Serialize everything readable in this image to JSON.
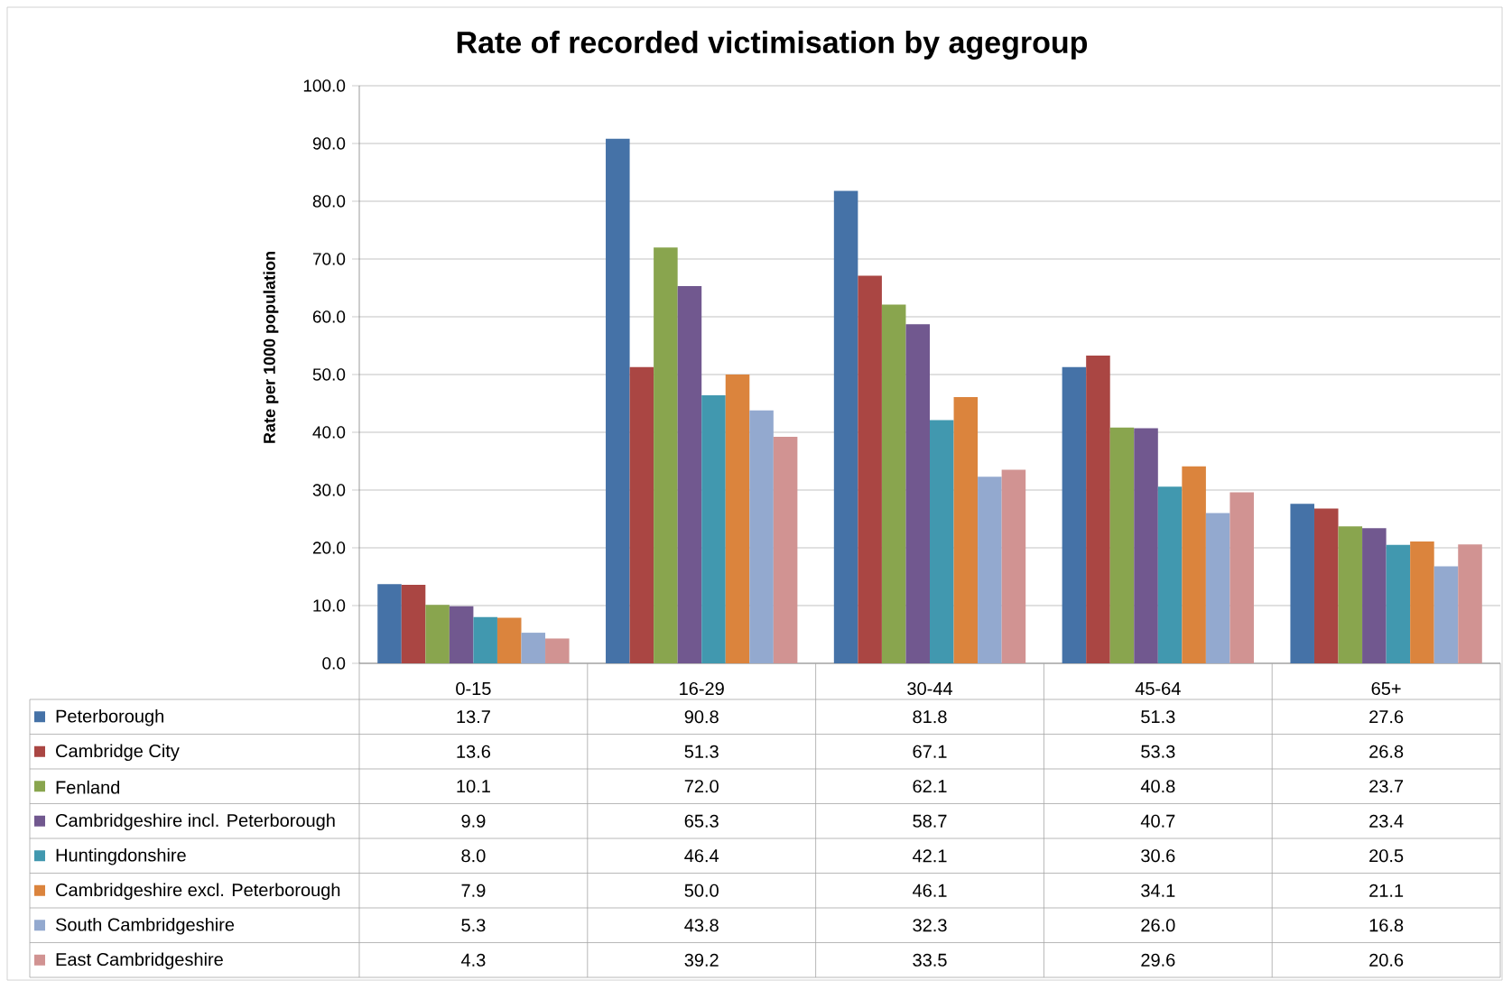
{
  "chart_data": {
    "type": "bar",
    "title": "Rate of recorded victimisation by agegroup",
    "ylabel": "Rate per 1000 population",
    "categories": [
      "0-15",
      "16-29",
      "30-44",
      "45-64",
      "65+"
    ],
    "series": [
      {
        "name": "Peterborough",
        "color": "#4572a7",
        "values": [
          13.7,
          90.8,
          81.8,
          51.3,
          27.6
        ],
        "value_labels": [
          "13.7",
          "90.8",
          "81.8",
          "51.3",
          "27.6"
        ]
      },
      {
        "name": "Cambridge City",
        "color": "#aa4643",
        "values": [
          13.6,
          51.3,
          67.1,
          53.3,
          26.8
        ],
        "value_labels": [
          "13.6",
          "51.3",
          "67.1",
          "53.3",
          "26.8"
        ]
      },
      {
        "name": "Fenland",
        "color": "#89a54e",
        "values": [
          10.1,
          72.0,
          62.1,
          40.8,
          23.7
        ],
        "value_labels": [
          "10.1",
          "72.0",
          "62.1",
          "40.8",
          "23.7"
        ]
      },
      {
        "name": "Cambridgeshire incl. Peterborough",
        "color": "#71588f",
        "values": [
          9.9,
          65.3,
          58.7,
          40.7,
          23.4
        ],
        "value_labels": [
          "9.9",
          "65.3",
          "58.7",
          "40.7",
          "23.4"
        ]
      },
      {
        "name": "Huntingdonshire",
        "color": "#4198af",
        "values": [
          8.0,
          46.4,
          42.1,
          30.6,
          20.5
        ],
        "value_labels": [
          "8.0",
          "46.4",
          "42.1",
          "30.6",
          "20.5"
        ]
      },
      {
        "name": "Cambridgeshire excl. Peterborough",
        "color": "#db843d",
        "values": [
          7.9,
          50.0,
          46.1,
          34.1,
          21.1
        ],
        "value_labels": [
          "7.9",
          "50.0",
          "46.1",
          "34.1",
          "21.1"
        ]
      },
      {
        "name": "South Cambridgeshire",
        "color": "#93a9cf",
        "values": [
          5.3,
          43.8,
          32.3,
          26.0,
          16.8
        ],
        "value_labels": [
          "5.3",
          "43.8",
          "32.3",
          "26.0",
          "16.8"
        ]
      },
      {
        "name": "East Cambridgeshire",
        "color": "#d19392",
        "values": [
          4.3,
          39.2,
          33.5,
          29.6,
          20.6
        ],
        "value_labels": [
          "4.3",
          "39.2",
          "33.5",
          "29.6",
          "20.6"
        ]
      }
    ],
    "ylim": [
      0,
      100
    ],
    "yticks": [
      {
        "value": 0,
        "label": "0.0"
      },
      {
        "value": 10,
        "label": "10.0"
      },
      {
        "value": 20,
        "label": "20.0"
      },
      {
        "value": 30,
        "label": "30.0"
      },
      {
        "value": 40,
        "label": "40.0"
      },
      {
        "value": 50,
        "label": "50.0"
      },
      {
        "value": 60,
        "label": "60.0"
      },
      {
        "value": 70,
        "label": "70.0"
      },
      {
        "value": 80,
        "label": "80.0"
      },
      {
        "value": 90,
        "label": "90.0"
      },
      {
        "value": 100,
        "label": "100.0"
      }
    ],
    "grid": "y",
    "legend": "bottom"
  }
}
